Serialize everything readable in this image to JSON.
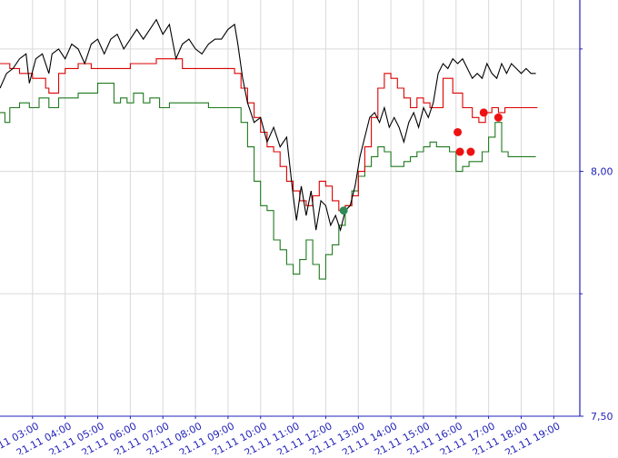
{
  "chart_data": {
    "type": "line",
    "title": "",
    "xlabel": "",
    "ylabel": "",
    "y_axis_position": "right",
    "ylim": [
      7.5,
      8.35
    ],
    "grid": true,
    "legend": "none",
    "colors": {
      "black_series": "#000000",
      "red_series": "#dd0000",
      "green_series": "#1f7a1f",
      "axis": "#2222bb",
      "grid": "#d9d9d9",
      "marker_red": "#ee1111",
      "marker_green": "#2e8b57"
    },
    "y_ticks": [
      {
        "value": 8.0,
        "label": "8,00"
      },
      {
        "value": 7.5,
        "label": "7,50"
      }
    ],
    "y_minor_gridlines": [
      8.25,
      7.75
    ],
    "x_ticks": [
      {
        "value": 3,
        "label": "21.11 03:00"
      },
      {
        "value": 4,
        "label": "21.11 04:00"
      },
      {
        "value": 5,
        "label": "21.11 05:00"
      },
      {
        "value": 6,
        "label": "21.11 06:00"
      },
      {
        "value": 7,
        "label": "21.11 07:00"
      },
      {
        "value": 8,
        "label": "21.11 08:00"
      },
      {
        "value": 9,
        "label": "21.11 09:00"
      },
      {
        "value": 10,
        "label": "21.11 10:00"
      },
      {
        "value": 11,
        "label": "21.11 11:00"
      },
      {
        "value": 12,
        "label": "21.11 12:00"
      },
      {
        "value": 13,
        "label": "21.11 13:00"
      },
      {
        "value": 14,
        "label": "21.11 14:00"
      },
      {
        "value": 15,
        "label": "21.11 15:00"
      },
      {
        "value": 16,
        "label": "21.11 16:00"
      },
      {
        "value": 17,
        "label": "21.11 17:00"
      },
      {
        "value": 18,
        "label": "21.11 18:00"
      },
      {
        "value": 19,
        "label": "21.11 19:00"
      }
    ],
    "xlim": [
      2.0,
      19.8
    ],
    "series": [
      {
        "key": "black",
        "step": false,
        "points": [
          [
            2.0,
            8.17
          ],
          [
            2.2,
            8.2
          ],
          [
            2.4,
            8.21
          ],
          [
            2.6,
            8.23
          ],
          [
            2.8,
            8.24
          ],
          [
            2.9,
            8.18
          ],
          [
            3.1,
            8.23
          ],
          [
            3.3,
            8.24
          ],
          [
            3.5,
            8.2
          ],
          [
            3.6,
            8.24
          ],
          [
            3.8,
            8.25
          ],
          [
            4.0,
            8.23
          ],
          [
            4.2,
            8.26
          ],
          [
            4.4,
            8.25
          ],
          [
            4.6,
            8.22
          ],
          [
            4.8,
            8.26
          ],
          [
            5.0,
            8.27
          ],
          [
            5.2,
            8.24
          ],
          [
            5.4,
            8.27
          ],
          [
            5.6,
            8.28
          ],
          [
            5.8,
            8.25
          ],
          [
            6.0,
            8.27
          ],
          [
            6.2,
            8.29
          ],
          [
            6.4,
            8.27
          ],
          [
            6.6,
            8.29
          ],
          [
            6.8,
            8.31
          ],
          [
            7.0,
            8.28
          ],
          [
            7.2,
            8.3
          ],
          [
            7.4,
            8.23
          ],
          [
            7.6,
            8.26
          ],
          [
            7.8,
            8.27
          ],
          [
            8.0,
            8.25
          ],
          [
            8.2,
            8.24
          ],
          [
            8.4,
            8.26
          ],
          [
            8.6,
            8.27
          ],
          [
            8.8,
            8.27
          ],
          [
            9.0,
            8.29
          ],
          [
            9.2,
            8.3
          ],
          [
            9.3,
            8.26
          ],
          [
            9.45,
            8.19
          ],
          [
            9.6,
            8.14
          ],
          [
            9.8,
            8.1
          ],
          [
            10.0,
            8.11
          ],
          [
            10.2,
            8.06
          ],
          [
            10.4,
            8.09
          ],
          [
            10.6,
            8.05
          ],
          [
            10.8,
            8.07
          ],
          [
            11.0,
            7.95
          ],
          [
            11.1,
            7.9
          ],
          [
            11.25,
            7.97
          ],
          [
            11.4,
            7.91
          ],
          [
            11.55,
            7.96
          ],
          [
            11.7,
            7.88
          ],
          [
            11.85,
            7.94
          ],
          [
            12.0,
            7.93
          ],
          [
            12.15,
            7.89
          ],
          [
            12.3,
            7.91
          ],
          [
            12.45,
            7.88
          ],
          [
            12.6,
            7.92
          ],
          [
            12.75,
            7.93
          ],
          [
            12.9,
            7.97
          ],
          [
            13.05,
            8.03
          ],
          [
            13.2,
            8.07
          ],
          [
            13.35,
            8.11
          ],
          [
            13.5,
            8.12
          ],
          [
            13.65,
            8.1
          ],
          [
            13.8,
            8.13
          ],
          [
            13.95,
            8.09
          ],
          [
            14.1,
            8.11
          ],
          [
            14.25,
            8.09
          ],
          [
            14.4,
            8.06
          ],
          [
            14.55,
            8.1
          ],
          [
            14.7,
            8.12
          ],
          [
            14.85,
            8.09
          ],
          [
            15.0,
            8.13
          ],
          [
            15.15,
            8.11
          ],
          [
            15.3,
            8.14
          ],
          [
            15.45,
            8.2
          ],
          [
            15.6,
            8.22
          ],
          [
            15.75,
            8.21
          ],
          [
            15.9,
            8.23
          ],
          [
            16.05,
            8.22
          ],
          [
            16.2,
            8.23
          ],
          [
            16.35,
            8.21
          ],
          [
            16.5,
            8.19
          ],
          [
            16.65,
            8.2
          ],
          [
            16.8,
            8.19
          ],
          [
            16.95,
            8.22
          ],
          [
            17.1,
            8.2
          ],
          [
            17.25,
            8.19
          ],
          [
            17.4,
            8.22
          ],
          [
            17.55,
            8.2
          ],
          [
            17.7,
            8.22
          ],
          [
            17.85,
            8.21
          ],
          [
            18.0,
            8.2
          ],
          [
            18.15,
            8.21
          ],
          [
            18.3,
            8.2
          ],
          [
            18.45,
            8.2
          ]
        ]
      },
      {
        "key": "red",
        "step": true,
        "points": [
          [
            2.0,
            8.22
          ],
          [
            2.3,
            8.21
          ],
          [
            2.6,
            8.2
          ],
          [
            2.9,
            8.2
          ],
          [
            3.0,
            8.19
          ],
          [
            3.4,
            8.17
          ],
          [
            3.5,
            8.16
          ],
          [
            3.8,
            8.2
          ],
          [
            4.0,
            8.21
          ],
          [
            4.4,
            8.22
          ],
          [
            4.8,
            8.21
          ],
          [
            5.2,
            8.21
          ],
          [
            5.6,
            8.21
          ],
          [
            6.0,
            8.22
          ],
          [
            6.4,
            8.22
          ],
          [
            6.8,
            8.23
          ],
          [
            7.2,
            8.23
          ],
          [
            7.6,
            8.21
          ],
          [
            8.0,
            8.21
          ],
          [
            8.4,
            8.21
          ],
          [
            8.8,
            8.21
          ],
          [
            9.2,
            8.2
          ],
          [
            9.4,
            8.17
          ],
          [
            9.6,
            8.14
          ],
          [
            9.8,
            8.11
          ],
          [
            10.0,
            8.08
          ],
          [
            10.2,
            8.05
          ],
          [
            10.4,
            8.04
          ],
          [
            10.6,
            8.01
          ],
          [
            10.8,
            7.98
          ],
          [
            11.0,
            7.96
          ],
          [
            11.2,
            7.94
          ],
          [
            11.4,
            7.93
          ],
          [
            11.6,
            7.95
          ],
          [
            11.8,
            7.98
          ],
          [
            12.0,
            7.97
          ],
          [
            12.2,
            7.94
          ],
          [
            12.4,
            7.92
          ],
          [
            12.6,
            7.93
          ],
          [
            12.8,
            7.95
          ],
          [
            13.0,
            8.0
          ],
          [
            13.2,
            8.05
          ],
          [
            13.4,
            8.11
          ],
          [
            13.6,
            8.17
          ],
          [
            13.8,
            8.2
          ],
          [
            14.0,
            8.19
          ],
          [
            14.2,
            8.17
          ],
          [
            14.4,
            8.15
          ],
          [
            14.6,
            8.13
          ],
          [
            14.8,
            8.15
          ],
          [
            15.0,
            8.14
          ],
          [
            15.2,
            8.13
          ],
          [
            15.4,
            8.13
          ],
          [
            15.6,
            8.19
          ],
          [
            15.9,
            8.16
          ],
          [
            16.2,
            8.13
          ],
          [
            16.5,
            8.11
          ],
          [
            16.7,
            8.1
          ],
          [
            16.9,
            8.12
          ],
          [
            17.1,
            8.13
          ],
          [
            17.3,
            8.12
          ],
          [
            17.5,
            8.13
          ],
          [
            17.8,
            8.13
          ],
          [
            18.1,
            8.13
          ],
          [
            18.5,
            8.13
          ]
        ]
      },
      {
        "key": "green",
        "step": true,
        "points": [
          [
            2.0,
            8.12
          ],
          [
            2.15,
            8.1
          ],
          [
            2.3,
            8.13
          ],
          [
            2.6,
            8.14
          ],
          [
            2.9,
            8.13
          ],
          [
            3.2,
            8.15
          ],
          [
            3.5,
            8.13
          ],
          [
            3.8,
            8.15
          ],
          [
            4.0,
            8.15
          ],
          [
            4.4,
            8.16
          ],
          [
            4.8,
            8.16
          ],
          [
            5.0,
            8.18
          ],
          [
            5.2,
            8.18
          ],
          [
            5.5,
            8.14
          ],
          [
            5.7,
            8.15
          ],
          [
            5.9,
            8.14
          ],
          [
            6.1,
            8.16
          ],
          [
            6.4,
            8.14
          ],
          [
            6.6,
            8.15
          ],
          [
            6.9,
            8.13
          ],
          [
            7.2,
            8.14
          ],
          [
            7.6,
            8.14
          ],
          [
            8.0,
            8.14
          ],
          [
            8.4,
            8.13
          ],
          [
            8.8,
            8.13
          ],
          [
            9.2,
            8.13
          ],
          [
            9.4,
            8.1
          ],
          [
            9.6,
            8.05
          ],
          [
            9.8,
            7.98
          ],
          [
            10.0,
            7.93
          ],
          [
            10.2,
            7.92
          ],
          [
            10.4,
            7.86
          ],
          [
            10.6,
            7.84
          ],
          [
            10.8,
            7.81
          ],
          [
            11.0,
            7.79
          ],
          [
            11.2,
            7.82
          ],
          [
            11.4,
            7.86
          ],
          [
            11.6,
            7.81
          ],
          [
            11.8,
            7.78
          ],
          [
            12.0,
            7.83
          ],
          [
            12.2,
            7.85
          ],
          [
            12.4,
            7.89
          ],
          [
            12.6,
            7.93
          ],
          [
            12.8,
            7.96
          ],
          [
            13.0,
            7.99
          ],
          [
            13.2,
            8.01
          ],
          [
            13.4,
            8.03
          ],
          [
            13.6,
            8.05
          ],
          [
            13.8,
            8.04
          ],
          [
            14.0,
            8.01
          ],
          [
            14.2,
            8.01
          ],
          [
            14.4,
            8.02
          ],
          [
            14.6,
            8.03
          ],
          [
            14.8,
            8.04
          ],
          [
            15.0,
            8.05
          ],
          [
            15.2,
            8.06
          ],
          [
            15.4,
            8.05
          ],
          [
            15.6,
            8.05
          ],
          [
            15.8,
            8.04
          ],
          [
            16.0,
            8.0
          ],
          [
            16.2,
            8.01
          ],
          [
            16.4,
            8.02
          ],
          [
            16.6,
            8.02
          ],
          [
            16.8,
            8.04
          ],
          [
            17.0,
            8.07
          ],
          [
            17.2,
            8.1
          ],
          [
            17.4,
            8.04
          ],
          [
            17.6,
            8.03
          ],
          [
            17.8,
            8.03
          ],
          [
            18.1,
            8.03
          ],
          [
            18.45,
            8.03
          ]
        ]
      }
    ],
    "markers": [
      {
        "x": 12.55,
        "y": 7.92,
        "color": "marker_green"
      },
      {
        "x": 16.05,
        "y": 8.08,
        "color": "marker_red"
      },
      {
        "x": 16.12,
        "y": 8.04,
        "color": "marker_red"
      },
      {
        "x": 16.45,
        "y": 8.04,
        "color": "marker_red"
      },
      {
        "x": 16.85,
        "y": 8.12,
        "color": "marker_red"
      },
      {
        "x": 17.3,
        "y": 8.11,
        "color": "marker_red"
      }
    ]
  }
}
